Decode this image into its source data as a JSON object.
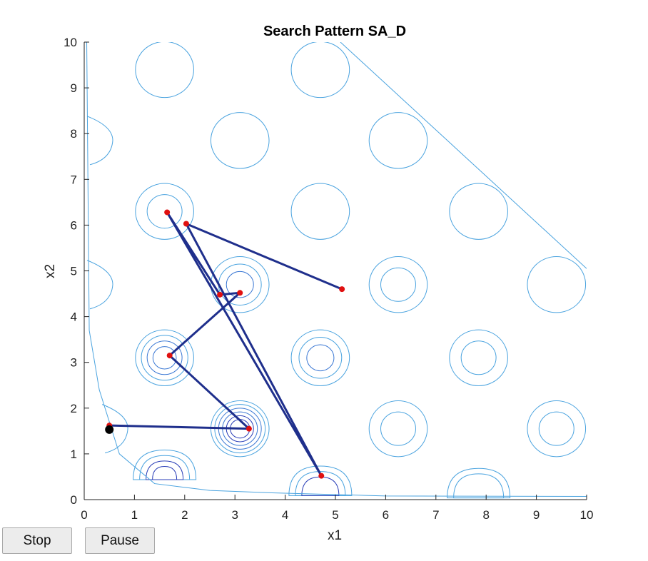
{
  "chart_data": {
    "type": "scatter",
    "title": "Search Pattern SA_D",
    "xlabel": "x1",
    "ylabel": "x2",
    "xlim": [
      0,
      10
    ],
    "ylim": [
      0,
      10
    ],
    "x_ticks": [
      "0",
      "1",
      "2",
      "3",
      "4",
      "5",
      "6",
      "7",
      "8",
      "9",
      "10"
    ],
    "y_ticks": [
      "0",
      "1",
      "2",
      "3",
      "4",
      "5",
      "6",
      "7",
      "8",
      "9",
      "10"
    ],
    "grid": false,
    "colors": {
      "contour_light": "#4aa3df",
      "contour_mid": "#3b78d4",
      "contour_dark": "#2b3fb8",
      "path": "#1f2f8c",
      "point": "#e01010",
      "current": "#000000"
    },
    "search_path": {
      "x": [
        0.5,
        3.28,
        1.7,
        3.1,
        2.7,
        1.65,
        4.72,
        2.03,
        5.13
      ],
      "y": [
        1.62,
        1.55,
        3.15,
        4.52,
        4.48,
        6.28,
        0.52,
        6.03,
        4.6
      ]
    },
    "current_point": {
      "x": 0.5,
      "y": 1.53
    },
    "contour_centers": [
      {
        "x": 1.6,
        "y": 9.4,
        "levels": 1
      },
      {
        "x": 4.7,
        "y": 9.4,
        "levels": 1
      },
      {
        "x": 3.1,
        "y": 7.85,
        "levels": 1
      },
      {
        "x": 6.25,
        "y": 7.85,
        "levels": 1
      },
      {
        "x": 1.6,
        "y": 6.3,
        "levels": 2
      },
      {
        "x": 4.7,
        "y": 6.3,
        "levels": 1
      },
      {
        "x": 7.85,
        "y": 6.3,
        "levels": 1
      },
      {
        "x": 3.1,
        "y": 4.7,
        "levels": 3
      },
      {
        "x": 6.25,
        "y": 4.7,
        "levels": 2
      },
      {
        "x": 9.4,
        "y": 4.7,
        "levels": 1
      },
      {
        "x": 1.6,
        "y": 3.1,
        "levels": 4
      },
      {
        "x": 4.7,
        "y": 3.1,
        "levels": 3
      },
      {
        "x": 7.85,
        "y": 3.1,
        "levels": 2
      },
      {
        "x": 3.1,
        "y": 1.55,
        "levels": 6
      },
      {
        "x": 6.25,
        "y": 1.55,
        "levels": 2
      },
      {
        "x": 9.4,
        "y": 1.55,
        "levels": 2
      }
    ]
  },
  "controls": {
    "stop_label": "Stop",
    "pause_label": "Pause"
  }
}
